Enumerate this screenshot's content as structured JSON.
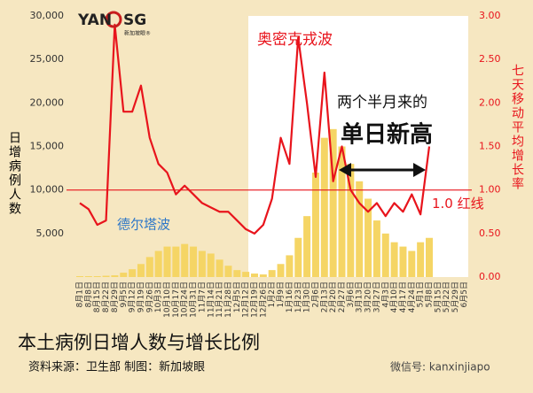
{
  "chart_data": {
    "type": "bar_line",
    "title": "本土病例日增人数与增长比例",
    "source": "资料来源：卫生部    制图：新加坡眼",
    "watermark": "微信号: kanxinjiapo",
    "logo": {
      "left": "YAN",
      "right": "SG",
      "sub": "新加坡眼®"
    },
    "y_label": "日增病例人数",
    "y2_label": "七天移动平均增长率",
    "annotations": {
      "omicron": "奥密克戎波",
      "delta": "德尔塔波",
      "line1": "两个半月来的",
      "line2": "单日新高"
    },
    "reference_line": {
      "value": 1.0,
      "label": "1.0 红线",
      "color": "#e8141c"
    },
    "categories": [
      "8月1日",
      "8月8日",
      "8月15日",
      "8月22日",
      "8月29日",
      "9月5日",
      "9月12日",
      "9月19日",
      "9月26日",
      "10月3日",
      "10月10日",
      "10月17日",
      "10月24日",
      "10月31日",
      "11月7日",
      "11月14日",
      "11月21日",
      "11月28日",
      "12月5日",
      "12月12日",
      "12月19日",
      "12月26日",
      "1月2日",
      "1月9日",
      "1月16日",
      "1月23日",
      "1月30日",
      "2月6日",
      "2月13日",
      "2月20日",
      "2月27日",
      "3月6日",
      "3月13日",
      "3月20日",
      "3月27日",
      "4月3日",
      "4月10日",
      "4月17日",
      "4月24日",
      "5月1日",
      "5月8日",
      "5月15日",
      "5月22日",
      "5月29日",
      "6月5日"
    ],
    "series": [
      {
        "name": "日增病例",
        "color": "#f5d565",
        "axis": "y",
        "values": [
          100,
          100,
          100,
          150,
          200,
          500,
          900,
          1500,
          2300,
          3000,
          3500,
          3500,
          3800,
          3500,
          3000,
          2700,
          2000,
          1300,
          800,
          600,
          400,
          300,
          800,
          1500,
          2500,
          4500,
          7000,
          12000,
          16000,
          17000,
          15000,
          13000,
          11000,
          9000,
          6500,
          5000,
          4000,
          3500,
          3000,
          4000,
          4500,
          null,
          null,
          null,
          null
        ]
      },
      {
        "name": "七天移动平均增长率",
        "color": "#e8141c",
        "axis": "y2",
        "values": [
          0.85,
          0.78,
          0.6,
          0.65,
          2.9,
          1.9,
          1.9,
          2.2,
          1.6,
          1.3,
          1.2,
          0.95,
          1.05,
          0.95,
          0.85,
          0.8,
          0.75,
          0.75,
          0.65,
          0.55,
          0.5,
          0.6,
          0.9,
          1.6,
          1.3,
          2.75,
          2.0,
          1.15,
          2.35,
          1.1,
          1.5,
          1.0,
          0.85,
          0.75,
          0.85,
          0.7,
          0.85,
          0.75,
          0.95,
          0.72,
          1.5,
          null,
          null,
          null,
          null
        ]
      }
    ],
    "ylim": [
      0,
      30000
    ],
    "yticks": [
      {
        "value": 5000,
        "label": "5,000"
      },
      {
        "value": 10000,
        "label": "10,000"
      },
      {
        "value": 15000,
        "label": "15,000"
      },
      {
        "value": 20000,
        "label": "20,000"
      },
      {
        "value": 25000,
        "label": "25,000"
      },
      {
        "value": 30000,
        "label": "30,000"
      }
    ],
    "y2lim": [
      0,
      3
    ],
    "y2ticks": [
      {
        "value": 0,
        "label": "0.00"
      },
      {
        "value": 0.5,
        "label": "0.50"
      },
      {
        "value": 1,
        "label": "1.00"
      },
      {
        "value": 1.5,
        "label": "1.50"
      },
      {
        "value": 2,
        "label": "2.00"
      },
      {
        "value": 2.5,
        "label": "2.50"
      },
      {
        "value": 3,
        "label": "3.00"
      }
    ]
  }
}
